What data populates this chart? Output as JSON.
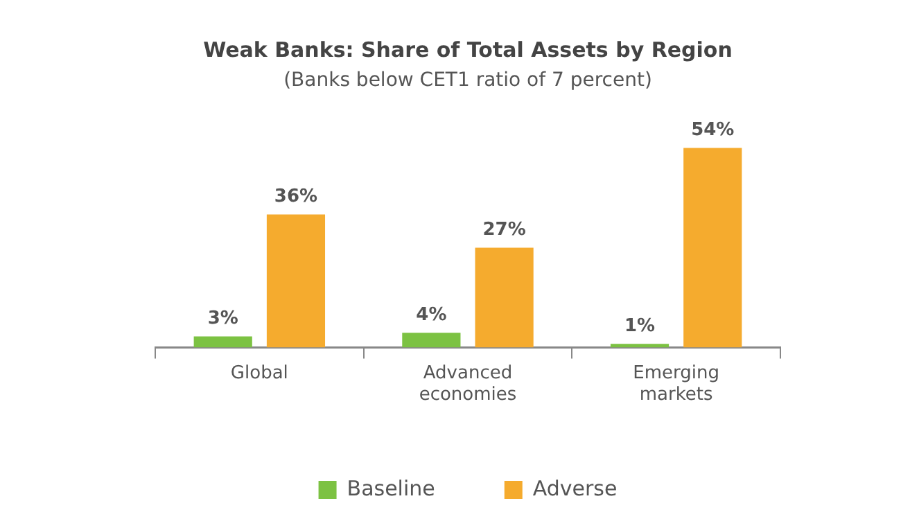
{
  "chart_data": {
    "type": "bar",
    "title": "Weak Banks: Share of Total Assets by Region",
    "subtitle": "(Banks below CET1 ratio of 7 percent)",
    "categories": [
      "Global",
      "Advanced economies",
      "Emerging markets"
    ],
    "series": [
      {
        "name": "Baseline",
        "color": "#7cc242",
        "values": [
          3,
          4,
          1
        ],
        "value_labels": [
          "3%",
          "4%",
          "1%"
        ]
      },
      {
        "name": "Adverse",
        "color": "#f5ab2e",
        "values": [
          36,
          27,
          54
        ],
        "value_labels": [
          "36%",
          "27%",
          "54%"
        ]
      }
    ],
    "grid": false,
    "legend": "bottom"
  }
}
